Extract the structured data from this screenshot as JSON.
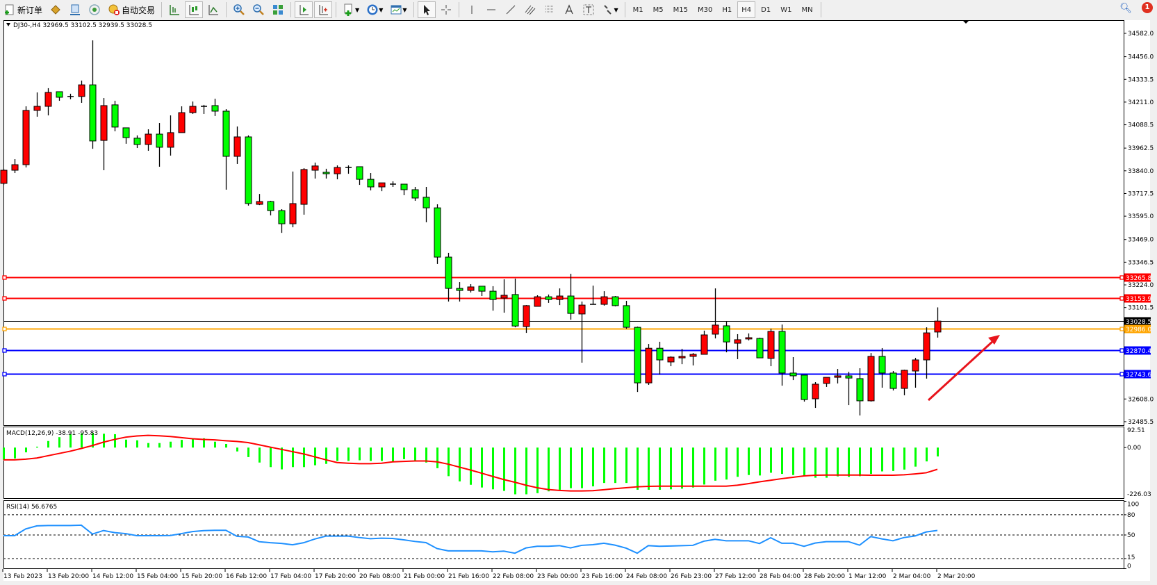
{
  "toolbar": {
    "new_order": "新订单",
    "auto_trading": "自动交易",
    "timeframes": [
      "M1",
      "M5",
      "M15",
      "M30",
      "H1",
      "H4",
      "D1",
      "W1",
      "MN"
    ],
    "active_timeframe": "H4",
    "notification_count": "1",
    "icons": [
      "new-order-icon",
      "market-watch-icon",
      "navigator-icon",
      "signals-icon",
      "auto-trading-icon",
      "bar-chart-icon",
      "candlestick-icon",
      "line-chart-icon",
      "zoom-in-icon",
      "zoom-out-icon",
      "tile-windows-icon",
      "autoscroll-icon",
      "chart-shift-icon",
      "indicators-icon",
      "periods-icon",
      "templates-icon",
      "cursor-icon",
      "crosshair-icon",
      "vertical-line-icon",
      "horizontal-line-icon",
      "trendline-icon",
      "equidistant-channel-icon",
      "fibonacci-icon",
      "text-icon",
      "text-label-icon",
      "arrows-icon",
      "search-icon",
      "notification-icon"
    ]
  },
  "chart": {
    "header": "DJ30-,H4  32969.5 33102.5 32939.5 33028.5",
    "bull_color": "#ff0000",
    "bear_color": "#00ff00",
    "price_ticks": [
      "34582.0",
      "34456.0",
      "34333.5",
      "34211.0",
      "34088.5",
      "33962.5",
      "33840.0",
      "33717.5",
      "33595.0",
      "33469.0",
      "33346.5",
      "33224.0",
      "33101.5",
      "32608.0",
      "32485.5"
    ],
    "levels": [
      {
        "label": "33265.8",
        "price": 33265.8,
        "color": "#ff0000"
      },
      {
        "label": "33153.9",
        "price": 33153.9,
        "color": "#ff0000"
      },
      {
        "label": "33028.5",
        "price": 33028.5,
        "color": "#000000"
      },
      {
        "label": "32986.0",
        "price": 32986.0,
        "color": "#ffa500"
      },
      {
        "label": "32870.4",
        "price": 32870.4,
        "color": "#0000ff"
      },
      {
        "label": "32743.6",
        "price": 32743.6,
        "color": "#0000ff"
      }
    ],
    "time_labels": [
      "13 Feb 2023",
      "13 Feb 20:00",
      "14 Feb 12:00",
      "15 Feb 04:00",
      "15 Feb 20:00",
      "16 Feb 12:00",
      "17 Feb 04:00",
      "17 Feb 20:00",
      "20 Feb 08:00",
      "21 Feb 00:00",
      "21 Feb 16:00",
      "22 Feb 08:00",
      "23 Feb 00:00",
      "23 Feb 16:00",
      "24 Feb 08:00",
      "26 Feb 23:00",
      "27 Feb 12:00",
      "28 Feb 04:00",
      "28 Feb 20:00",
      "1 Mar 12:00",
      "2 Mar 04:00",
      "2 Mar 20:00"
    ],
    "arrow_color": "#e8141c"
  },
  "chart_data": {
    "type": "candlestick",
    "symbol": "DJ30-",
    "timeframe": "H4",
    "ylim": [
      32485.5,
      34582.0
    ],
    "ohlc": [
      [
        33772,
        33851,
        33764,
        33843
      ],
      [
        33843,
        33903,
        33828,
        33873
      ],
      [
        33873,
        34188,
        33858,
        34166
      ],
      [
        34166,
        34263,
        34132,
        34188
      ],
      [
        34188,
        34286,
        34139,
        34263
      ],
      [
        34267,
        34267,
        34218,
        34237
      ],
      [
        34241,
        34256,
        34226,
        34241
      ],
      [
        34241,
        34327,
        34207,
        34304
      ],
      [
        34304,
        34544,
        33959,
        34001
      ],
      [
        34004,
        34233,
        33843,
        34192
      ],
      [
        34196,
        34218,
        34053,
        34076
      ],
      [
        34072,
        34072,
        33986,
        34019
      ],
      [
        34016,
        34031,
        33963,
        33982
      ],
      [
        33982,
        34064,
        33948,
        34038
      ],
      [
        34038,
        34098,
        33862,
        33967
      ],
      [
        33967,
        34139,
        33922,
        34046
      ],
      [
        34046,
        34188,
        34046,
        34154
      ],
      [
        34154,
        34214,
        34147,
        34188
      ],
      [
        34188,
        34196,
        34147,
        34188
      ],
      [
        34192,
        34229,
        34136,
        34162
      ],
      [
        34162,
        34173,
        33738,
        33918
      ],
      [
        33918,
        34079,
        33877,
        34023
      ],
      [
        34023,
        34031,
        33652,
        33663
      ],
      [
        33659,
        33715,
        33655,
        33674
      ],
      [
        33674,
        33678,
        33599,
        33625
      ],
      [
        33625,
        33633,
        33505,
        33554
      ],
      [
        33554,
        33836,
        33535,
        33663
      ],
      [
        33659,
        33854,
        33603,
        33847
      ],
      [
        33843,
        33884,
        33798,
        33866
      ],
      [
        33832,
        33851,
        33798,
        33824
      ],
      [
        33824,
        33869,
        33794,
        33858
      ],
      [
        33858,
        33869,
        33824,
        33858
      ],
      [
        33862,
        33862,
        33764,
        33794
      ],
      [
        33794,
        33828,
        33734,
        33753
      ],
      [
        33753,
        33775,
        33730,
        33775
      ],
      [
        33768,
        33783,
        33753,
        33768
      ],
      [
        33768,
        33768,
        33708,
        33738
      ],
      [
        33738,
        33753,
        33678,
        33693
      ],
      [
        33697,
        33753,
        33562,
        33640
      ],
      [
        33640,
        33659,
        33337,
        33374
      ],
      [
        33374,
        33397,
        33134,
        33205
      ],
      [
        33205,
        33239,
        33134,
        33194
      ],
      [
        33194,
        33228,
        33183,
        33213
      ],
      [
        33217,
        33217,
        33164,
        33190
      ],
      [
        33190,
        33217,
        33085,
        33145
      ],
      [
        33153,
        33254,
        33074,
        33168
      ],
      [
        33172,
        33258,
        32995,
        33002
      ],
      [
        32999,
        33115,
        32965,
        33112
      ],
      [
        33108,
        33168,
        33108,
        33160
      ],
      [
        33160,
        33172,
        33127,
        33145
      ],
      [
        33145,
        33205,
        33115,
        33164
      ],
      [
        33164,
        33284,
        33036,
        33070
      ],
      [
        33067,
        33134,
        32804,
        33115
      ],
      [
        33119,
        33220,
        33119,
        33119
      ],
      [
        33119,
        33190,
        33112,
        33160
      ],
      [
        33160,
        33164,
        33108,
        33112
      ],
      [
        33112,
        33138,
        32987,
        32995
      ],
      [
        32995,
        32999,
        32646,
        32695
      ],
      [
        32695,
        32905,
        32684,
        32882
      ],
      [
        32882,
        32917,
        32740,
        32819
      ],
      [
        32808,
        32838,
        32785,
        32834
      ],
      [
        32830,
        32879,
        32796,
        32838
      ],
      [
        32838,
        32856,
        32789,
        32849
      ],
      [
        32849,
        32977,
        32849,
        32954
      ],
      [
        32958,
        33205,
        32935,
        33007
      ],
      [
        33003,
        33025,
        32860,
        32916
      ],
      [
        32909,
        32958,
        32823,
        32928
      ],
      [
        32932,
        32962,
        32924,
        32939
      ],
      [
        32935,
        32939,
        32830,
        32830
      ],
      [
        32827,
        32988,
        32785,
        32973
      ],
      [
        32973,
        33010,
        32680,
        32748
      ],
      [
        32748,
        32834,
        32710,
        32733
      ],
      [
        32737,
        32737,
        32594,
        32605
      ],
      [
        32609,
        32699,
        32560,
        32688
      ],
      [
        32692,
        32725,
        32673,
        32725
      ],
      [
        32725,
        32770,
        32692,
        32733
      ],
      [
        32733,
        32755,
        32575,
        32721
      ],
      [
        32718,
        32774,
        32519,
        32598
      ],
      [
        32598,
        32856,
        32594,
        32838
      ],
      [
        32838,
        32883,
        32669,
        32748
      ],
      [
        32748,
        32759,
        32654,
        32665
      ],
      [
        32665,
        32766,
        32628,
        32763
      ],
      [
        32759,
        32830,
        32669,
        32819
      ],
      [
        32819,
        32995,
        32718,
        32965
      ],
      [
        32969.5,
        33102.5,
        32939.5,
        33028.5
      ]
    ],
    "macd": {
      "label": "MACD(12,26,9) -38.91 -95.83",
      "ylim": [
        -226.03,
        92.51
      ],
      "ticks": [
        "92.51",
        "0.00",
        "-226.03"
      ],
      "hist_color": "#00ff00",
      "signal_color": "#ff0000",
      "histogram": [
        -54,
        -48,
        -21,
        4,
        29,
        46,
        59,
        62,
        64,
        61,
        59,
        35,
        32,
        20,
        20,
        26,
        34,
        39,
        41,
        26,
        16,
        -17,
        -42,
        -66,
        -86,
        -96,
        -86,
        -86,
        -78,
        -72,
        -59,
        -59,
        -56,
        -59,
        -59,
        -61,
        -51,
        -56,
        -66,
        -91,
        -126,
        -149,
        -164,
        -176,
        -184,
        -191,
        -206,
        -206,
        -201,
        -193,
        -186,
        -179,
        -179,
        -171,
        -156,
        -156,
        -156,
        -186,
        -186,
        -186,
        -184,
        -181,
        -176,
        -163,
        -146,
        -141,
        -129,
        -121,
        -123,
        -111,
        -116,
        -121,
        -126,
        -133,
        -133,
        -127,
        -129,
        -126,
        -116,
        -105,
        -103,
        -97,
        -84,
        -61,
        -38.91
      ],
      "signal": [
        -54,
        -54,
        -51,
        -46,
        -36,
        -26,
        -16,
        -4,
        9,
        24,
        36,
        46,
        51,
        54,
        52,
        49,
        44,
        39,
        36,
        34,
        30,
        27,
        22,
        12,
        2,
        -8,
        -18,
        -28,
        -41,
        -54,
        -66,
        -69,
        -71,
        -71,
        -69,
        -63,
        -61,
        -59,
        -59,
        -63,
        -73,
        -86,
        -99,
        -113,
        -127,
        -141,
        -153,
        -166,
        -177,
        -185,
        -189,
        -191,
        -191,
        -190,
        -186,
        -181,
        -177,
        -173,
        -171,
        -170,
        -170,
        -170,
        -170,
        -170,
        -170,
        -170,
        -166,
        -159,
        -151,
        -144,
        -137,
        -131,
        -125,
        -122,
        -121,
        -121,
        -121,
        -121,
        -122,
        -122,
        -122,
        -120,
        -116,
        -111,
        -95.83
      ]
    },
    "rsi": {
      "label": "RSI(14) 56.6765",
      "ylim": [
        0,
        100
      ],
      "ticks": [
        "100",
        "80",
        "50",
        "15",
        "0"
      ],
      "levels": [
        80,
        50,
        15
      ],
      "color": "#1e90ff",
      "values": [
        49,
        49,
        59,
        63.5,
        64,
        64,
        64,
        64.5,
        51.4,
        56.6,
        53.5,
        52,
        49,
        49,
        49,
        49.2,
        52,
        55,
        56.5,
        57,
        57,
        48,
        47,
        40,
        38.5,
        37.5,
        35.5,
        38.5,
        44,
        48.3,
        48.3,
        48.3,
        46.2,
        44.5,
        45.2,
        44.9,
        42.8,
        40.4,
        38.7,
        29.8,
        26.4,
        26.4,
        26.4,
        26.4,
        25,
        26,
        23,
        30.8,
        33.2,
        33.2,
        34.2,
        30.8,
        34.6,
        35.6,
        37.7,
        34.9,
        30.5,
        23,
        34.2,
        33.2,
        33.6,
        34.2,
        34.6,
        40.8,
        43.5,
        41.4,
        41.4,
        41.4,
        37.3,
        45.9,
        37.7,
        37.7,
        33.2,
        38,
        40.1,
        40.1,
        40.1,
        34.9,
        47.6,
        44.2,
        41.4,
        46.2,
        48.6,
        54.5,
        56.6765
      ]
    }
  }
}
